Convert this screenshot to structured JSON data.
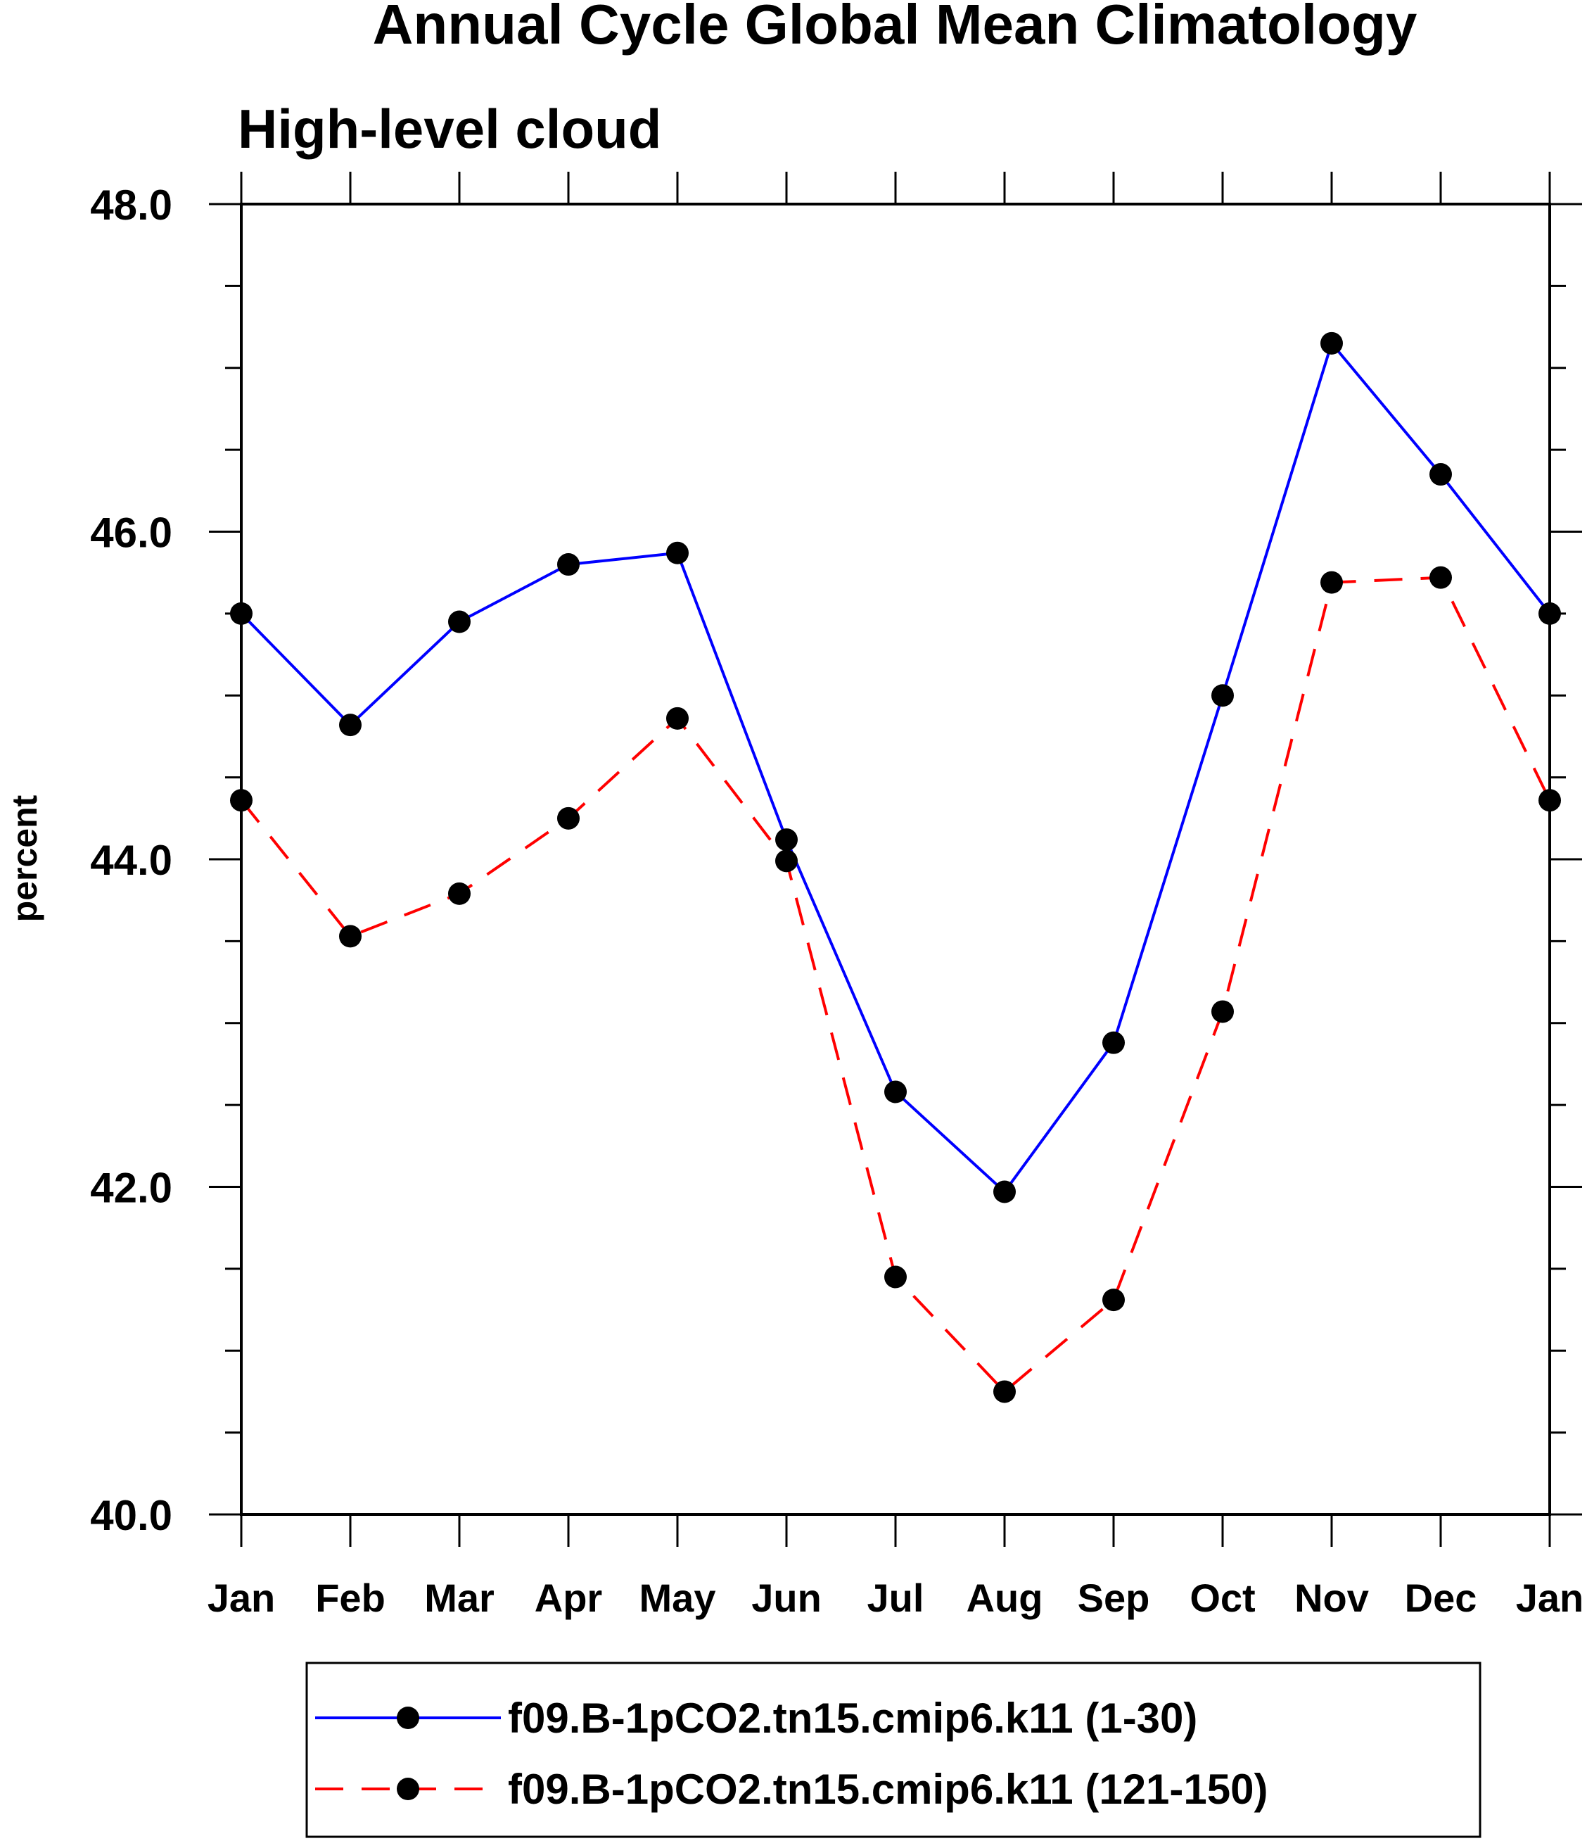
{
  "chart_data": {
    "type": "line",
    "title": "Annual Cycle Global Mean Climatology",
    "subtitle": "High-level cloud",
    "ylabel": "percent",
    "xlabel": "",
    "ylim": [
      40.0,
      48.0
    ],
    "yticks": [
      "40.0",
      "42.0",
      "44.0",
      "46.0",
      "48.0"
    ],
    "categories": [
      "Jan",
      "Feb",
      "Mar",
      "Apr",
      "May",
      "Jun",
      "Jul",
      "Aug",
      "Sep",
      "Oct",
      "Nov",
      "Dec",
      "Jan"
    ],
    "series": [
      {
        "name": "f09.B-1pCO2.tn15.cmip6.k11 (1-30)",
        "color": "#0000ff",
        "dash": "solid",
        "values": [
          45.5,
          44.82,
          45.45,
          45.8,
          45.87,
          44.12,
          42.58,
          41.97,
          42.88,
          45.0,
          47.15,
          46.35,
          45.5
        ]
      },
      {
        "name": "f09.B-1pCO2.tn15.cmip6.k11 (121-150)",
        "color": "#ff0000",
        "dash": "dashed",
        "values": [
          44.36,
          43.53,
          43.79,
          44.25,
          44.86,
          43.99,
          41.45,
          40.75,
          41.31,
          43.07,
          45.69,
          45.72,
          44.36
        ]
      }
    ],
    "legend_position": "bottom",
    "grid": false,
    "marker": "filled-circle"
  }
}
